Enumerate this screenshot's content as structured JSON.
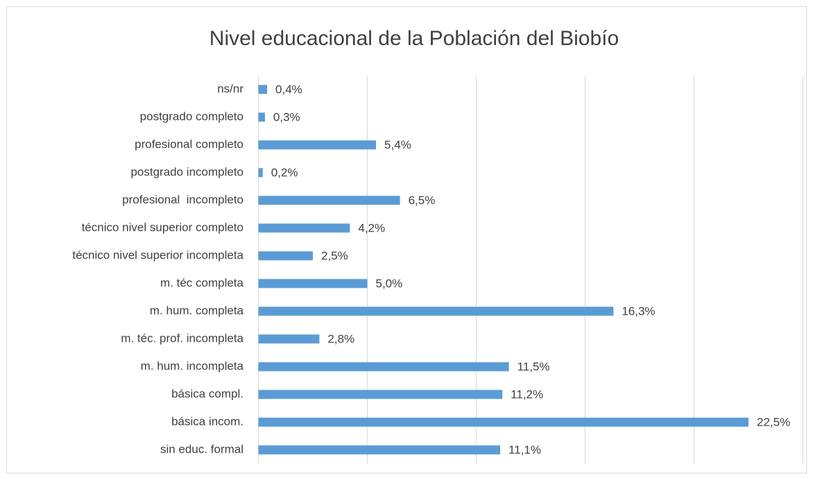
{
  "chart_data": {
    "type": "bar",
    "orientation": "horizontal",
    "title": "Nivel educacional de la Población del Biobío",
    "categories": [
      "ns/nr",
      "postgrado completo",
      "profesional completo",
      "postgrado incompleto",
      "profesional  incompleto",
      "técnico nivel superior completo",
      "técnico nivel superior incompleta",
      "m. téc completa",
      "m. hum. completa",
      "m. téc. prof. incompleta",
      "m. hum. incompleta",
      "básica compl.",
      "básica incom.",
      "sin educ. formal"
    ],
    "values": [
      0.4,
      0.3,
      5.4,
      0.2,
      6.5,
      4.2,
      2.5,
      5.0,
      16.3,
      2.8,
      11.5,
      11.2,
      22.5,
      11.1
    ],
    "value_labels": [
      "0,4%",
      "0,3%",
      "5,4%",
      "0,2%",
      "6,5%",
      "4,2%",
      "2,5%",
      "5,0%",
      "16,3%",
      "2,8%",
      "11,5%",
      "11,2%",
      "22,5%",
      "11,1%"
    ],
    "color": "#5b9bd5",
    "xlim": [
      0,
      25
    ],
    "xticks": [
      0,
      5,
      10,
      15,
      20,
      25
    ],
    "grid": true
  }
}
